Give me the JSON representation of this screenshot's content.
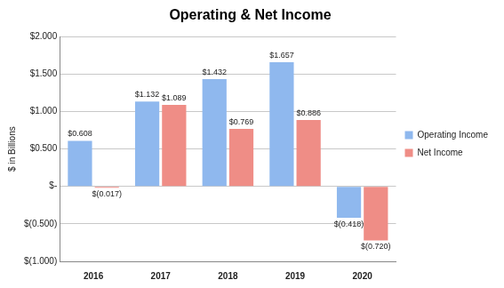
{
  "chart_data": {
    "type": "bar",
    "title": "Operating & Net Income",
    "y_label": "$ in Billions",
    "categories": [
      "2016",
      "2017",
      "2018",
      "2019",
      "2020"
    ],
    "series": [
      {
        "name": "Operating Income",
        "color": "#8fb8ee",
        "values": [
          0.608,
          1.132,
          1.432,
          1.657,
          -0.418
        ],
        "value_labels": [
          "$0.608",
          "$1.132",
          "$1.432",
          "$1.657",
          "$(0.418)"
        ]
      },
      {
        "name": "Net Income",
        "color": "#ef8d86",
        "values": [
          -0.017,
          1.089,
          0.769,
          0.886,
          -0.72
        ],
        "value_labels": [
          "$(0.017)",
          "$1.089",
          "$0.769",
          "$0.886",
          "$(0.720)"
        ]
      }
    ],
    "ylim": [
      -1,
      2
    ],
    "yticks": [
      {
        "value": -1,
        "label": "$(1.000)"
      },
      {
        "value": -0.5,
        "label": "$(0.500)"
      },
      {
        "value": 0,
        "label": "$-"
      },
      {
        "value": 0.5,
        "label": "$0.500"
      },
      {
        "value": 1,
        "label": "$1.000"
      },
      {
        "value": 1.5,
        "label": "$1.500"
      },
      {
        "value": 2,
        "label": "$2.000"
      }
    ],
    "grid": true,
    "legend": "right",
    "data_labels": true
  }
}
